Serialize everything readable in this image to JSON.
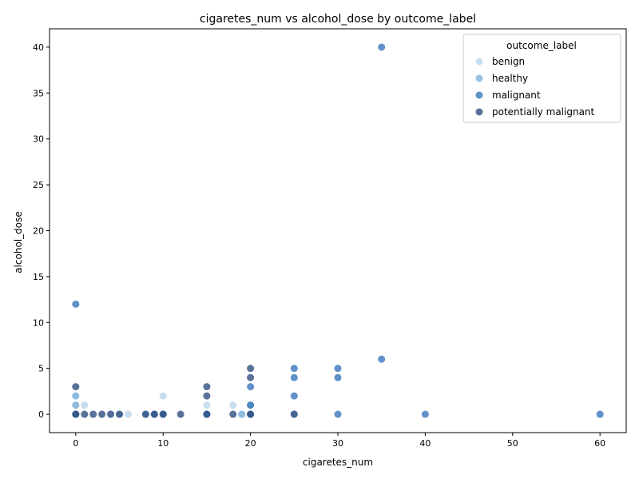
{
  "chart_data": {
    "type": "scatter",
    "title": "cigaretes_num vs alcohol_dose by outcome_label",
    "xlabel": "cigaretes_num",
    "ylabel": "alcohol_dose",
    "xlim": [
      -3,
      63
    ],
    "ylim": [
      -2,
      42
    ],
    "xticks": [
      0,
      10,
      20,
      30,
      40,
      50,
      60
    ],
    "yticks": [
      0,
      5,
      10,
      15,
      20,
      25,
      30,
      35,
      40
    ],
    "grid": false,
    "legend": {
      "title": "outcome_label",
      "placement": "top-right"
    },
    "series": [
      {
        "name": "benign",
        "color": "#b9d6ea",
        "points": [
          [
            0,
            0
          ],
          [
            0,
            1
          ],
          [
            0,
            2
          ],
          [
            1,
            1
          ],
          [
            6,
            0
          ],
          [
            10,
            2
          ],
          [
            10,
            0
          ],
          [
            15,
            1
          ],
          [
            18,
            1
          ],
          [
            19,
            0
          ],
          [
            20,
            0
          ],
          [
            8,
            0
          ],
          [
            4,
            0
          ]
        ]
      },
      {
        "name": "healthy",
        "color": "#7fb2d9",
        "points": [
          [
            0,
            0
          ],
          [
            0,
            1
          ],
          [
            0,
            2
          ],
          [
            8,
            0
          ],
          [
            20,
            0
          ],
          [
            20,
            1
          ],
          [
            19,
            0
          ],
          [
            15,
            0
          ],
          [
            5,
            0
          ],
          [
            25,
            0
          ]
        ]
      },
      {
        "name": "malignant",
        "color": "#3a75bb",
        "points": [
          [
            35,
            40
          ],
          [
            0,
            12
          ],
          [
            35,
            6
          ],
          [
            25,
            5
          ],
          [
            25,
            4
          ],
          [
            25,
            2
          ],
          [
            30,
            5
          ],
          [
            30,
            4
          ],
          [
            30,
            0
          ],
          [
            40,
            0
          ],
          [
            60,
            0
          ],
          [
            20,
            3
          ],
          [
            20,
            1
          ],
          [
            20,
            0
          ],
          [
            15,
            0
          ],
          [
            0,
            0
          ],
          [
            9,
            0
          ],
          [
            10,
            0
          ]
        ]
      },
      {
        "name": "potentially malignant",
        "color": "#2f4f7f",
        "points": [
          [
            0,
            3
          ],
          [
            0,
            0
          ],
          [
            1,
            0
          ],
          [
            2,
            0
          ],
          [
            3,
            0
          ],
          [
            4,
            0
          ],
          [
            5,
            0
          ],
          [
            9,
            0
          ],
          [
            10,
            0
          ],
          [
            12,
            0
          ],
          [
            15,
            3
          ],
          [
            15,
            2
          ],
          [
            15,
            0
          ],
          [
            18,
            0
          ],
          [
            20,
            5
          ],
          [
            20,
            4
          ],
          [
            20,
            0
          ],
          [
            25,
            0
          ],
          [
            8,
            0
          ]
        ]
      }
    ]
  }
}
